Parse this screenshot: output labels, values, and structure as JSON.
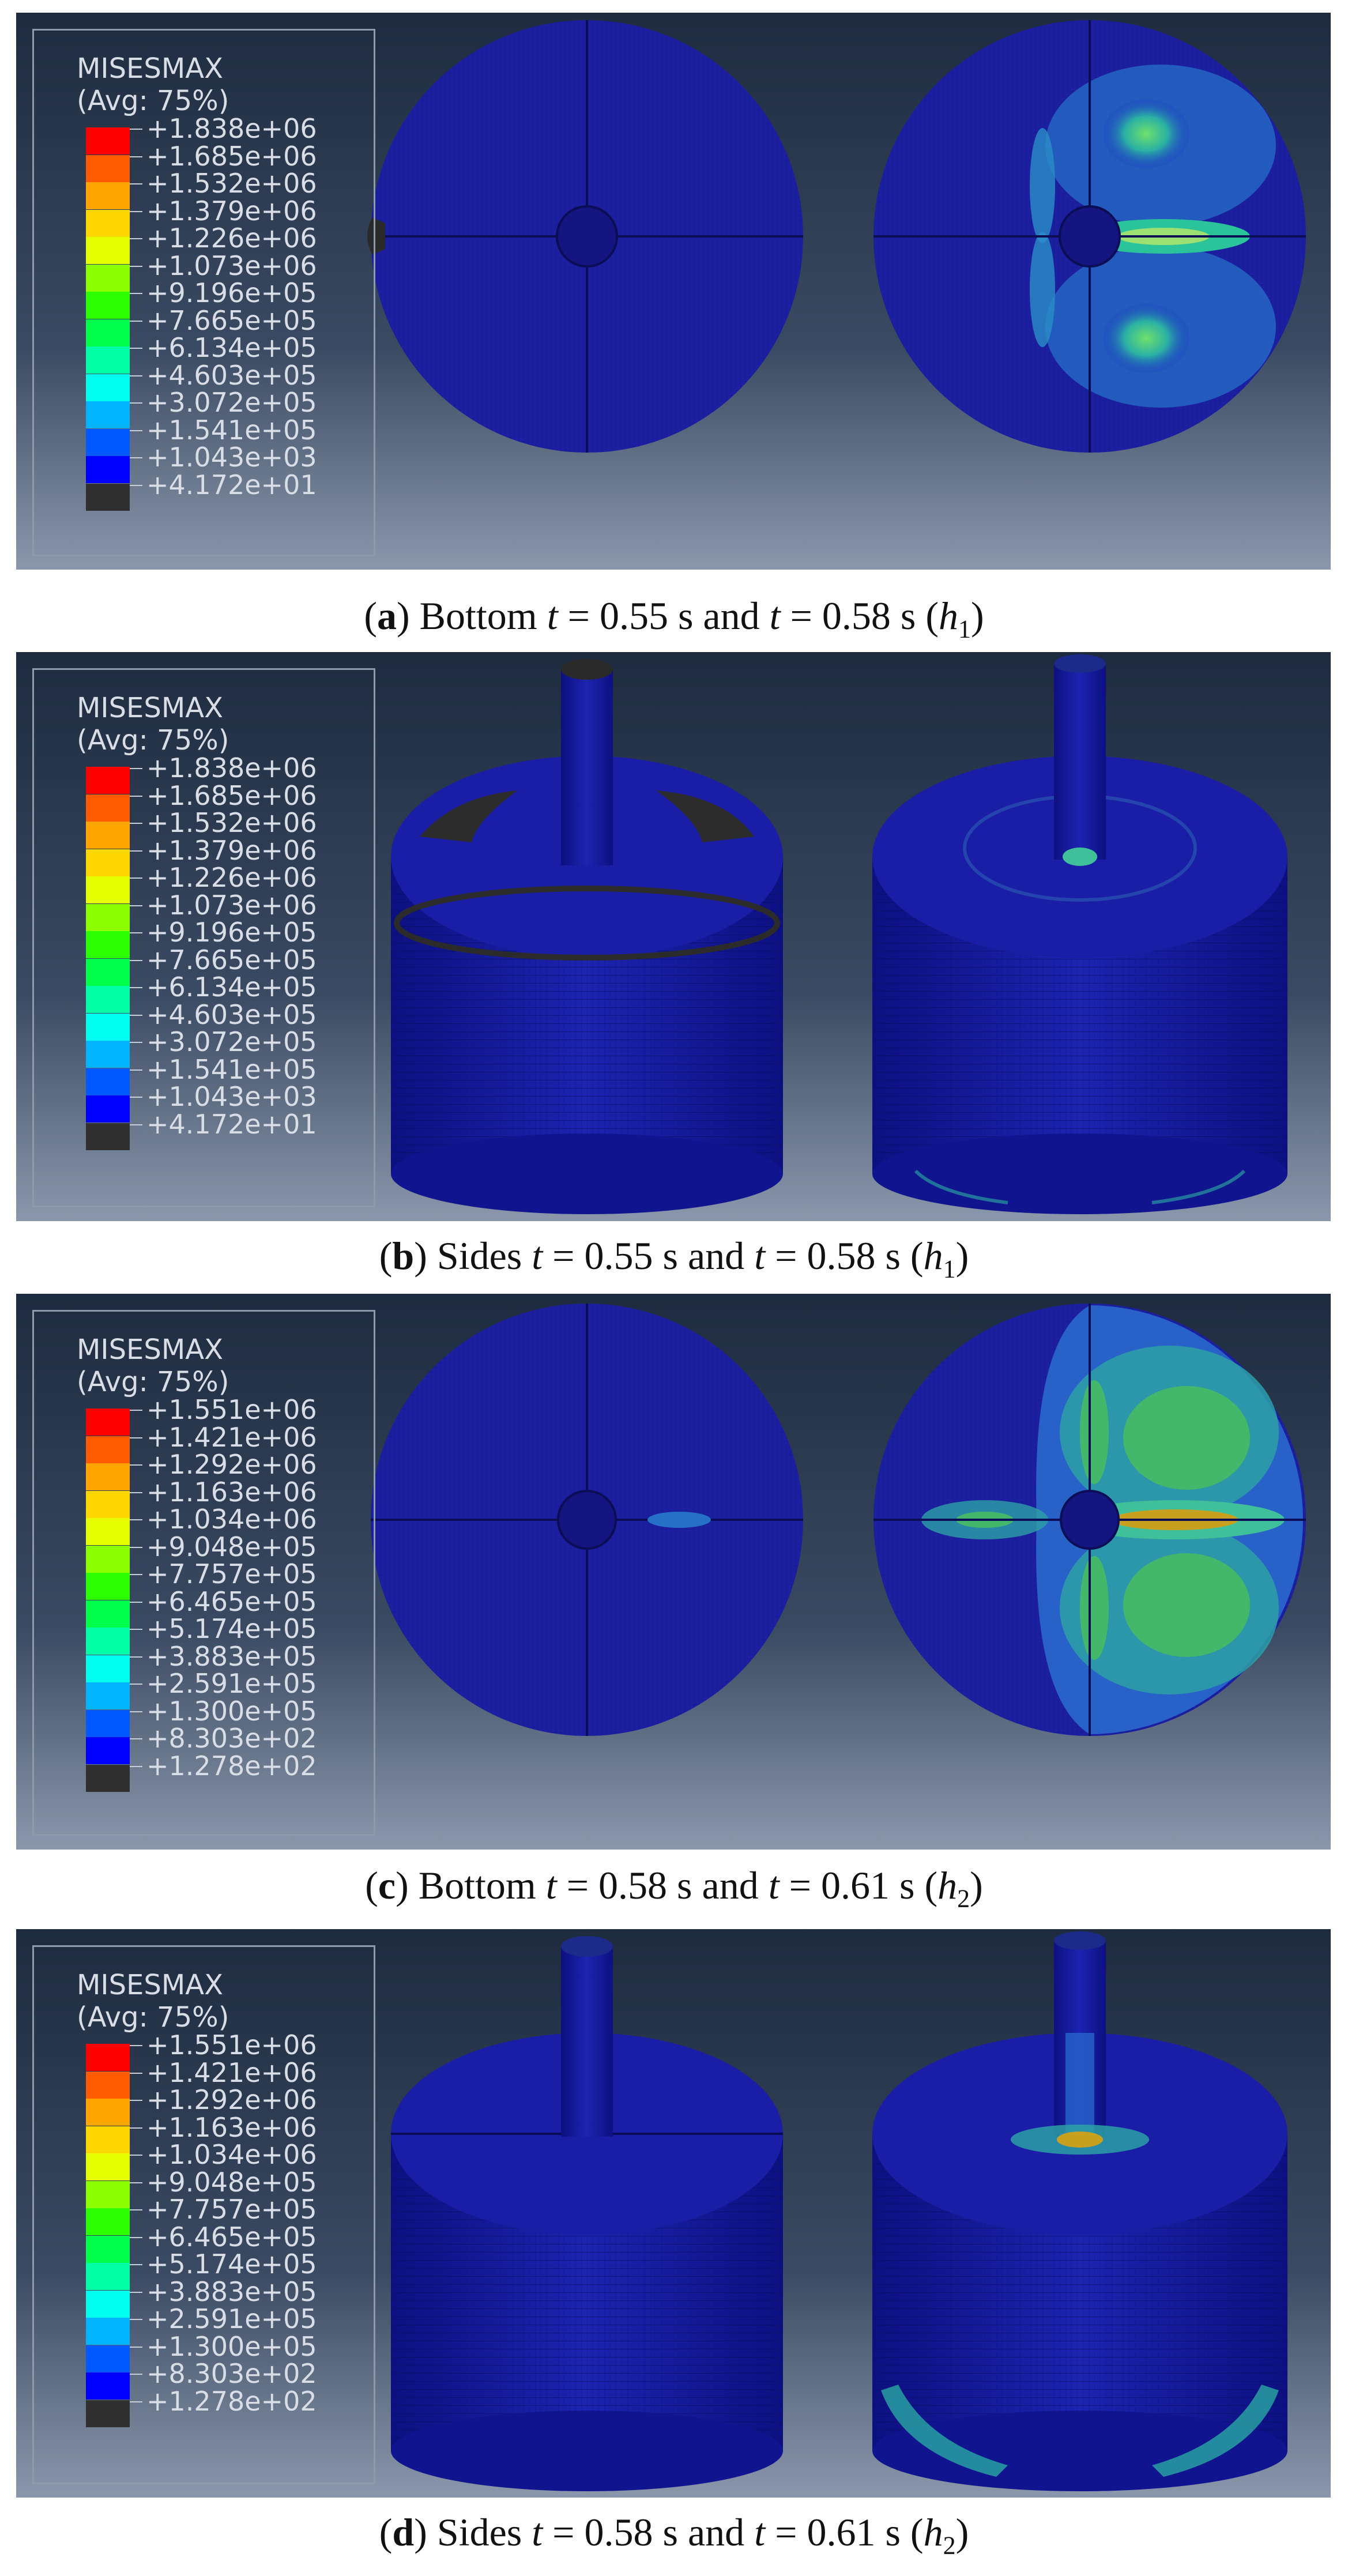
{
  "panels": [
    {
      "legend": {
        "title": "MISESMAX",
        "subtitle": "(Avg: 75%)",
        "values": [
          "+1.838e+06",
          "+1.685e+06",
          "+1.532e+06",
          "+1.379e+06",
          "+1.226e+06",
          "+1.073e+06",
          "+9.196e+05",
          "+7.665e+05",
          "+6.134e+05",
          "+4.603e+05",
          "+3.072e+05",
          "+1.541e+05",
          "+1.043e+03",
          "+4.172e+01"
        ]
      },
      "view": "bottom",
      "caption": {
        "letter": "a",
        "lead": "Bottom",
        "t1": "0.55",
        "t2": "0.58",
        "h": "1"
      }
    },
    {
      "legend": {
        "title": "MISESMAX",
        "subtitle": "(Avg: 75%)",
        "values": [
          "+1.838e+06",
          "+1.685e+06",
          "+1.532e+06",
          "+1.379e+06",
          "+1.226e+06",
          "+1.073e+06",
          "+9.196e+05",
          "+7.665e+05",
          "+6.134e+05",
          "+4.603e+05",
          "+3.072e+05",
          "+1.541e+05",
          "+1.043e+03",
          "+4.172e+01"
        ]
      },
      "view": "sides",
      "caption": {
        "letter": "b",
        "lead": "Sides",
        "t1": "0.55",
        "t2": "0.58",
        "h": "1"
      }
    },
    {
      "legend": {
        "title": "MISESMAX",
        "subtitle": "(Avg: 75%)",
        "values": [
          "+1.551e+06",
          "+1.421e+06",
          "+1.292e+06",
          "+1.163e+06",
          "+1.034e+06",
          "+9.048e+05",
          "+7.757e+05",
          "+6.465e+05",
          "+5.174e+05",
          "+3.883e+05",
          "+2.591e+05",
          "+1.300e+05",
          "+8.303e+02",
          "+1.278e+02"
        ]
      },
      "view": "bottom",
      "caption": {
        "letter": "c",
        "lead": "Bottom",
        "t1": "0.58",
        "t2": "0.61",
        "h": "2"
      }
    },
    {
      "legend": {
        "title": "MISESMAX",
        "subtitle": "(Avg: 75%)",
        "values": [
          "+1.551e+06",
          "+1.421e+06",
          "+1.292e+06",
          "+1.163e+06",
          "+1.034e+06",
          "+9.048e+05",
          "+7.757e+05",
          "+6.465e+05",
          "+5.174e+05",
          "+3.883e+05",
          "+2.591e+05",
          "+1.300e+05",
          "+8.303e+02",
          "+1.278e+02"
        ]
      },
      "view": "sides",
      "caption": {
        "letter": "d",
        "lead": "Sides",
        "t1": "0.58",
        "t2": "0.61",
        "h": "2"
      }
    }
  ],
  "caption_words": {
    "and": "and",
    "unit": "s",
    "t": "t"
  },
  "legend_colors": [
    "#ff0000",
    "#ff5a00",
    "#ffa500",
    "#ffd700",
    "#e6ff00",
    "#8cff00",
    "#2bff00",
    "#00ff4d",
    "#00ffa6",
    "#00ffee",
    "#00b4ff",
    "#005aff",
    "#0000ff",
    "#303030"
  ]
}
